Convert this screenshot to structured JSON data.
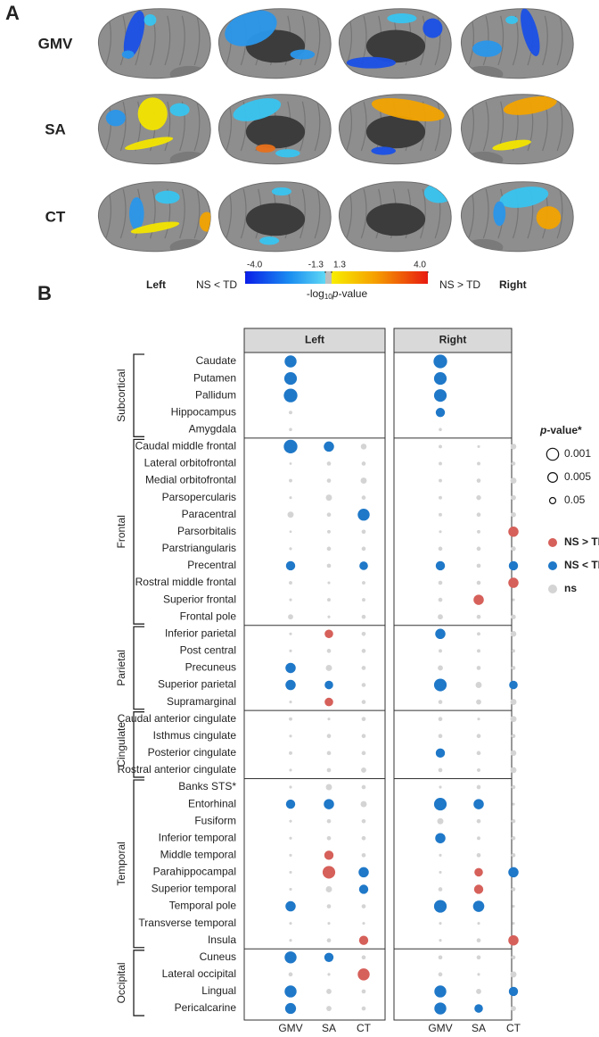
{
  "panel_a": {
    "label": "A",
    "rows": [
      "GMV",
      "SA",
      "CT"
    ],
    "left_label": "Left",
    "right_label": "Right",
    "low_label": "NS < TD",
    "high_label": "NS > TD",
    "colorbar": {
      "ticks": [
        {
          "value": -4,
          "label": "-4.0"
        },
        {
          "value": -1.3,
          "label": "-1.3"
        },
        {
          "value": 1.3,
          "label": "1.3"
        },
        {
          "value": 4,
          "label": "4.0"
        }
      ],
      "title": [
        "-log",
        "10",
        "p",
        "-value"
      ]
    }
  },
  "chart_data": {
    "type": "dot-matrix",
    "panel_label": "B",
    "facets": [
      "Left",
      "Right"
    ],
    "measures": [
      "GMV",
      "SA",
      "CT"
    ],
    "size_title": [
      "p",
      "-value*"
    ],
    "size_legend": [
      0.001,
      0.005,
      0.05
    ],
    "color_legend": [
      {
        "code": "up",
        "label": "NS > TD",
        "color": "#d6605a"
      },
      {
        "code": "down",
        "label": "NS < TD",
        "color": "#1f78c8"
      },
      {
        "code": "ns",
        "label": "ns",
        "color": "#d4d4d4"
      }
    ],
    "groups": [
      {
        "label": "Subcortical",
        "regions": [
          {
            "name": "Caudate",
            "values": [
              3,
              null,
              null,
              3.5,
              null,
              null
            ],
            "status": [
              "down",
              null,
              null,
              "down",
              null,
              null
            ]
          },
          {
            "name": "Putamen",
            "values": [
              3.2,
              null,
              null,
              3.2,
              null,
              null
            ],
            "status": [
              "down",
              null,
              null,
              "down",
              null,
              null
            ]
          },
          {
            "name": "Pallidum",
            "values": [
              3.5,
              null,
              null,
              3.2,
              null,
              null
            ],
            "status": [
              "down",
              null,
              null,
              "down",
              null,
              null
            ]
          },
          {
            "name": "Hippocampus",
            "values": [
              0.5,
              null,
              null,
              2.2,
              null,
              null
            ],
            "status": [
              "ns",
              null,
              null,
              "down",
              null,
              null
            ]
          },
          {
            "name": "Amygdala",
            "values": [
              0.4,
              null,
              null,
              0.4,
              null,
              null
            ],
            "status": [
              "ns",
              null,
              null,
              "ns",
              null,
              null
            ]
          }
        ]
      },
      {
        "label": "Frontal",
        "regions": [
          {
            "name": "Caudal middle frontal",
            "values": [
              3.5,
              2.5,
              1.2,
              0.5,
              0.3,
              1.2
            ],
            "status": [
              "down",
              "down",
              "ns",
              "ns",
              "ns",
              "ns"
            ]
          },
          {
            "name": "Lateral orbitofrontal",
            "values": [
              0.2,
              0.7,
              0.7,
              0.5,
              0.5,
              0.7
            ],
            "status": [
              "ns",
              "ns",
              "ns",
              "ns",
              "ns",
              "ns"
            ]
          },
          {
            "name": "Medial orbitofrontal",
            "values": [
              0.5,
              0.7,
              1.3,
              0.5,
              0.7,
              1.3
            ],
            "status": [
              "ns",
              "ns",
              "ns",
              "ns",
              "ns",
              "ns"
            ]
          },
          {
            "name": "Parsopercularis",
            "values": [
              0.3,
              1.3,
              0.7,
              0.5,
              0.9,
              1
            ],
            "status": [
              "ns",
              "ns",
              "ns",
              "ns",
              "ns",
              "ns"
            ]
          },
          {
            "name": "Paracentral",
            "values": [
              1.3,
              0.7,
              3,
              0.5,
              0.7,
              1
            ],
            "status": [
              "ns",
              "ns",
              "down",
              "ns",
              "ns",
              "ns"
            ]
          },
          {
            "name": "Parsorbitalis",
            "values": [
              0.2,
              0.5,
              0.7,
              0.3,
              0.5,
              2.5
            ],
            "status": [
              "ns",
              "ns",
              "ns",
              "ns",
              "ns",
              "up"
            ]
          },
          {
            "name": "Parstriangularis",
            "values": [
              0.3,
              0.7,
              0.7,
              0.7,
              0.7,
              0.9
            ],
            "status": [
              "ns",
              "ns",
              "ns",
              "ns",
              "ns",
              "ns"
            ]
          },
          {
            "name": "Precentral",
            "values": [
              2.2,
              0.7,
              2,
              2.2,
              0.7,
              2.2
            ],
            "status": [
              "down",
              "ns",
              "down",
              "down",
              "ns",
              "down"
            ]
          },
          {
            "name": "Rostral middle frontal",
            "values": [
              0.5,
              0.3,
              0.5,
              0.7,
              0.7,
              2.5
            ],
            "status": [
              "ns",
              "ns",
              "ns",
              "ns",
              "ns",
              "up"
            ]
          },
          {
            "name": "Superior frontal",
            "values": [
              0.3,
              0.5,
              0.5,
              0.7,
              2.5,
              0.3
            ],
            "status": [
              "ns",
              "ns",
              "ns",
              "ns",
              "up",
              "ns"
            ]
          },
          {
            "name": "Frontal pole",
            "values": [
              1,
              0.3,
              0.7,
              1,
              0.7,
              0.9
            ],
            "status": [
              "ns",
              "ns",
              "ns",
              "ns",
              "ns",
              "ns"
            ]
          }
        ]
      },
      {
        "label": "Parietal",
        "regions": [
          {
            "name": "Inferior parietal",
            "values": [
              0.3,
              2,
              0.7,
              2.5,
              0.5,
              1.2
            ],
            "status": [
              "ns",
              "up",
              "ns",
              "down",
              "ns",
              "ns"
            ]
          },
          {
            "name": "Post central",
            "values": [
              0.3,
              0.7,
              0.7,
              0.5,
              0.5,
              0.5
            ],
            "status": [
              "ns",
              "ns",
              "ns",
              "ns",
              "ns",
              "ns"
            ]
          },
          {
            "name": "Precuneus",
            "values": [
              2.5,
              1.3,
              0.7,
              1,
              0.7,
              0.7
            ],
            "status": [
              "down",
              "ns",
              "ns",
              "ns",
              "ns",
              "ns"
            ]
          },
          {
            "name": "Superior parietal",
            "values": [
              2.5,
              2,
              0.7,
              3.2,
              1.3,
              2
            ],
            "status": [
              "down",
              "down",
              "ns",
              "down",
              "ns",
              "down"
            ]
          },
          {
            "name": "Supramarginal",
            "values": [
              0.3,
              2,
              0.7,
              0.7,
              1,
              1.3
            ],
            "status": [
              "ns",
              "up",
              "ns",
              "ns",
              "ns",
              "ns"
            ]
          }
        ]
      },
      {
        "label": "Cingulate",
        "regions": [
          {
            "name": "Caudal anterior cingulate",
            "values": [
              0.5,
              0.3,
              0.7,
              0.7,
              0.3,
              1.3
            ],
            "status": [
              "ns",
              "ns",
              "ns",
              "ns",
              "ns",
              "ns"
            ]
          },
          {
            "name": "Isthmus cingulate",
            "values": [
              0.3,
              0.7,
              0.7,
              0.7,
              0.7,
              0.7
            ],
            "status": [
              "ns",
              "ns",
              "ns",
              "ns",
              "ns",
              "ns"
            ]
          },
          {
            "name": "Posterior cingulate",
            "values": [
              0.5,
              0.7,
              0.7,
              2.2,
              0.7,
              1.2
            ],
            "status": [
              "ns",
              "ns",
              "ns",
              "down",
              "ns",
              "ns"
            ]
          },
          {
            "name": "Rostral anterior cingulate",
            "values": [
              0.3,
              0.7,
              1,
              0.7,
              0.5,
              1.3
            ],
            "status": [
              "ns",
              "ns",
              "ns",
              "ns",
              "ns",
              "ns"
            ]
          }
        ]
      },
      {
        "label": "Temporal",
        "regions": [
          {
            "name": "Banks STS*",
            "values": [
              0.3,
              1.3,
              0.7,
              0.3,
              0.7,
              0.7
            ],
            "status": [
              "ns",
              "ns",
              "ns",
              "ns",
              "ns",
              "ns"
            ]
          },
          {
            "name": "Entorhinal",
            "values": [
              2.2,
              2.5,
              1.3,
              3.2,
              2.5,
              0.3
            ],
            "status": [
              "down",
              "down",
              "ns",
              "down",
              "down",
              "ns"
            ]
          },
          {
            "name": "Fusiform",
            "values": [
              0.3,
              0.7,
              0.7,
              1.3,
              0.7,
              0.7
            ],
            "status": [
              "ns",
              "ns",
              "ns",
              "ns",
              "ns",
              "ns"
            ]
          },
          {
            "name": "Inferior temporal",
            "values": [
              0.3,
              0.7,
              0.7,
              2.5,
              0.5,
              0.7
            ],
            "status": [
              "ns",
              "ns",
              "ns",
              "down",
              "ns",
              "ns"
            ]
          },
          {
            "name": "Middle temporal",
            "values": [
              0.3,
              2.2,
              0.7,
              0.3,
              0.7,
              0.7
            ],
            "status": [
              "ns",
              "up",
              "ns",
              "ns",
              "ns",
              "ns"
            ]
          },
          {
            "name": "Parahippocampal",
            "values": [
              0.3,
              3.2,
              2.5,
              0.3,
              2,
              2.5
            ],
            "status": [
              "ns",
              "up",
              "down",
              "ns",
              "up",
              "down"
            ]
          },
          {
            "name": "Superior temporal",
            "values": [
              0.3,
              1.3,
              2.2,
              0.7,
              2.2,
              0.7
            ],
            "status": [
              "ns",
              "ns",
              "down",
              "ns",
              "up",
              "ns"
            ]
          },
          {
            "name": "Temporal pole",
            "values": [
              2.5,
              0.7,
              0.7,
              3.2,
              2.8,
              0.3
            ],
            "status": [
              "down",
              "ns",
              "ns",
              "down",
              "down",
              "ns"
            ]
          },
          {
            "name": "Transverse temporal",
            "values": [
              0.3,
              0.3,
              0.3,
              0.3,
              0.3,
              0.3
            ],
            "status": [
              "ns",
              "ns",
              "ns",
              "ns",
              "ns",
              "ns"
            ]
          },
          {
            "name": "Insula",
            "values": [
              0.3,
              0.7,
              2.2,
              0.3,
              0.7,
              2.5
            ],
            "status": [
              "ns",
              "ns",
              "up",
              "ns",
              "ns",
              "up"
            ]
          }
        ]
      },
      {
        "label": "Occipital",
        "regions": [
          {
            "name": "Cuneus",
            "values": [
              3,
              2.2,
              0.7,
              0.7,
              0.7,
              0.7
            ],
            "status": [
              "down",
              "down",
              "ns",
              "ns",
              "ns",
              "ns"
            ]
          },
          {
            "name": "Lateral occipital",
            "values": [
              0.7,
              0.3,
              3,
              0.7,
              0.3,
              1.3
            ],
            "status": [
              "ns",
              "ns",
              "up",
              "ns",
              "ns",
              "ns"
            ]
          },
          {
            "name": "Lingual",
            "values": [
              3,
              1,
              0.7,
              3,
              1,
              2.2
            ],
            "status": [
              "down",
              "ns",
              "ns",
              "down",
              "ns",
              "down"
            ]
          },
          {
            "name": "Pericalcarine",
            "values": [
              2.7,
              1,
              0.7,
              3,
              2,
              1
            ],
            "status": [
              "down",
              "ns",
              "ns",
              "down",
              "down",
              "ns"
            ]
          }
        ]
      }
    ]
  }
}
